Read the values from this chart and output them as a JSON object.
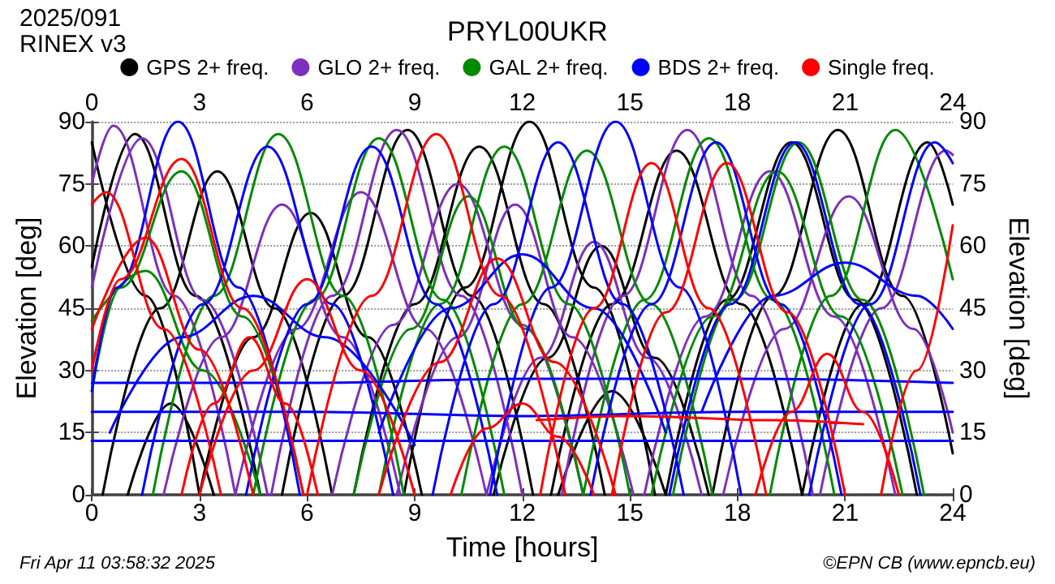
{
  "chart_data": {
    "type": "line",
    "title": "PRYL00UKR",
    "xlabel": "Time [hours]",
    "ylabel": "Elevation [deg]",
    "y2label": "Elevation [deg]",
    "annotations": [
      "2025/091",
      "RINEX v3",
      "Fri Apr 11 03:58:32 2025",
      "©EPN CB (www.epncb.eu)"
    ],
    "xlim": [
      0,
      24
    ],
    "xticks": [
      0,
      3,
      6,
      9,
      12,
      15,
      18,
      21,
      24
    ],
    "x2lim": [
      0,
      24
    ],
    "x2ticks": [
      0,
      3,
      6,
      9,
      12,
      15,
      18,
      21,
      24
    ],
    "ylim": [
      0,
      90
    ],
    "yticks": [
      0,
      15,
      30,
      45,
      60,
      75,
      90
    ],
    "y2lim": [
      0,
      90
    ],
    "y2ticks": [
      0,
      15,
      30,
      45,
      60,
      75,
      90
    ],
    "grid": "y",
    "legend": "top",
    "marker": "none",
    "line_style": "solid",
    "series": [
      {
        "name": "GPS 2+ freq.",
        "color": "#000000",
        "x": [
          0,
          1.5,
          3,
          0,
          1.2,
          2.9,
          4.7,
          0.3,
          1.9,
          3.5,
          5.1,
          6.7,
          3,
          4.5,
          6.1,
          7.7,
          9.2,
          5.3,
          7,
          8.8,
          10.6,
          12.3,
          7.3,
          9,
          10.8,
          12.6,
          14.3,
          8.7,
          10.4,
          12.2,
          14,
          15.7,
          11.2,
          12.7,
          14.2,
          15.7,
          17.2,
          12.8,
          14.5,
          16.3,
          18.1,
          19.8,
          16,
          17.7,
          19.5,
          21.3,
          23,
          17.3,
          19,
          20.8,
          22.6,
          24,
          19.8,
          21.5,
          23.3,
          24,
          13,
          14.5,
          16,
          1,
          2.2,
          3.4
        ],
        "values": [
          85,
          48,
          0,
          55,
          87,
          48,
          0,
          0,
          45,
          78,
          45,
          0,
          0,
          38,
          68,
          38,
          0,
          0,
          48,
          88,
          48,
          0,
          0,
          46,
          84,
          46,
          0,
          0,
          50,
          90,
          50,
          0,
          0,
          33,
          60,
          33,
          0,
          0,
          46,
          83,
          46,
          0,
          0,
          47,
          85,
          47,
          0,
          0,
          48,
          88,
          48,
          10,
          0,
          46,
          85,
          70,
          0,
          25,
          0,
          0,
          22,
          0
        ]
      },
      {
        "name": "GLO 2+ freq.",
        "color": "#7d2fbf",
        "x": [
          0,
          0.6,
          2.3,
          4,
          0,
          1.4,
          3.1,
          4.9,
          2,
          3.6,
          5.3,
          7,
          8.6,
          4,
          5.7,
          7.5,
          9.3,
          11,
          5,
          6.7,
          8.5,
          10.3,
          12,
          6.7,
          8.4,
          10.2,
          12,
          13.7,
          8.5,
          10.2,
          11.8,
          13.4,
          15.1,
          11,
          12.5,
          14,
          15.5,
          17,
          13.1,
          14.8,
          16.6,
          18.4,
          20.1,
          15.4,
          17.1,
          18.9,
          20.7,
          22.4,
          17.6,
          19.3,
          21.1,
          22.9,
          24,
          20.3,
          22,
          23.8,
          24
        ],
        "values": [
          75,
          89,
          48,
          0,
          50,
          86,
          47,
          0,
          0,
          38,
          70,
          38,
          0,
          0,
          40,
          73,
          40,
          0,
          0,
          48,
          88,
          48,
          0,
          0,
          41,
          75,
          41,
          0,
          0,
          38,
          70,
          38,
          0,
          0,
          33,
          61,
          33,
          0,
          0,
          48,
          88,
          48,
          0,
          0,
          43,
          78,
          43,
          0,
          0,
          40,
          72,
          40,
          15,
          0,
          45,
          83,
          82
        ]
      },
      {
        "name": "GAL 2+ freq.",
        "color": "#008a00",
        "x": [
          0,
          0.8,
          2.5,
          4.2,
          5.9,
          1.7,
          3.4,
          5.2,
          7,
          8.7,
          0,
          1.5,
          3.1,
          4.7,
          4.5,
          6.2,
          8,
          9.8,
          11.5,
          7.3,
          8.9,
          10.5,
          12.1,
          13.7,
          8,
          9.7,
          11.5,
          13.3,
          15,
          10.3,
          12,
          13.8,
          15.6,
          17.3,
          13.7,
          15.4,
          17.2,
          19,
          20.7,
          16.2,
          17.9,
          19.7,
          21.5,
          23.2,
          15.6,
          17.3,
          19.1,
          20.9,
          22.6,
          18.9,
          20.6,
          22.4,
          24
        ],
        "values": [
          25,
          50,
          78,
          43,
          0,
          0,
          48,
          87,
          48,
          0,
          42,
          54,
          30,
          0,
          0,
          47,
          86,
          47,
          0,
          0,
          40,
          72,
          40,
          0,
          0,
          46,
          84,
          46,
          0,
          0,
          46,
          83,
          46,
          0,
          0,
          47,
          86,
          47,
          0,
          0,
          47,
          85,
          47,
          0,
          0,
          43,
          78,
          43,
          0,
          0,
          48,
          88,
          52
        ]
      },
      {
        "name": "BDS 2+ freq.",
        "color": "#0000ff",
        "x": [
          0,
          0.7,
          2.4,
          4.1,
          5.8,
          1.4,
          3.1,
          4.9,
          6.7,
          8.4,
          4.3,
          6,
          7.8,
          9.6,
          11.3,
          9.5,
          11.2,
          13,
          14.8,
          16.5,
          11.1,
          12.8,
          14.6,
          16.4,
          18.1,
          13.9,
          15.6,
          17.4,
          19.2,
          20.9,
          16.1,
          17.8,
          19.6,
          21.4,
          23.1,
          20,
          21.7,
          23.5,
          24,
          17,
          19,
          21,
          23,
          24,
          0.5,
          2.5,
          4.5,
          6.5,
          9,
          8,
          10,
          12,
          14,
          16,
          0,
          6,
          12,
          18,
          24,
          0,
          6,
          12,
          18,
          24,
          0,
          12,
          24
        ],
        "values": [
          25,
          50,
          90,
          50,
          0,
          0,
          46,
          84,
          46,
          0,
          0,
          46,
          84,
          46,
          0,
          0,
          46,
          85,
          46,
          0,
          0,
          50,
          90,
          50,
          0,
          0,
          46,
          85,
          46,
          0,
          0,
          46,
          85,
          46,
          0,
          0,
          46,
          85,
          80,
          20,
          48,
          56,
          48,
          40,
          15,
          38,
          48,
          38,
          12,
          15,
          45,
          58,
          45,
          15,
          27,
          27,
          28,
          28,
          27,
          20,
          20,
          19,
          20,
          20,
          13,
          13,
          13
        ]
      },
      {
        "name": "Single freq.",
        "color": "#ff0000",
        "x": [
          0,
          0.4,
          2,
          3.6,
          0,
          0.8,
          2.5,
          4.2,
          5.9,
          0,
          1.5,
          3,
          4.5,
          2.5,
          3.4,
          4.4,
          5.4,
          6.3,
          3,
          4.5,
          6,
          7.5,
          9,
          6,
          7.8,
          9.6,
          11.4,
          13.2,
          8,
          9.7,
          11.3,
          12.9,
          14.6,
          10,
          11,
          12,
          13,
          14,
          12.5,
          14,
          15.6,
          17.2,
          18.8,
          14.5,
          16,
          17.7,
          19.4,
          21,
          12.4,
          15,
          19,
          21.5,
          18.5,
          19.5,
          20.5,
          21.5,
          22.5,
          22,
          23,
          24
        ],
        "values": [
          70,
          73,
          40,
          0,
          30,
          52,
          81,
          45,
          0,
          40,
          62,
          35,
          0,
          0,
          22,
          38,
          22,
          0,
          0,
          30,
          52,
          30,
          0,
          0,
          48,
          87,
          48,
          0,
          0,
          32,
          57,
          32,
          0,
          0,
          16,
          22,
          14,
          0,
          0,
          45,
          80,
          45,
          0,
          0,
          44,
          80,
          44,
          0,
          18,
          19,
          18,
          17,
          0,
          20,
          34,
          20,
          0,
          0,
          30,
          65
        ]
      }
    ]
  }
}
